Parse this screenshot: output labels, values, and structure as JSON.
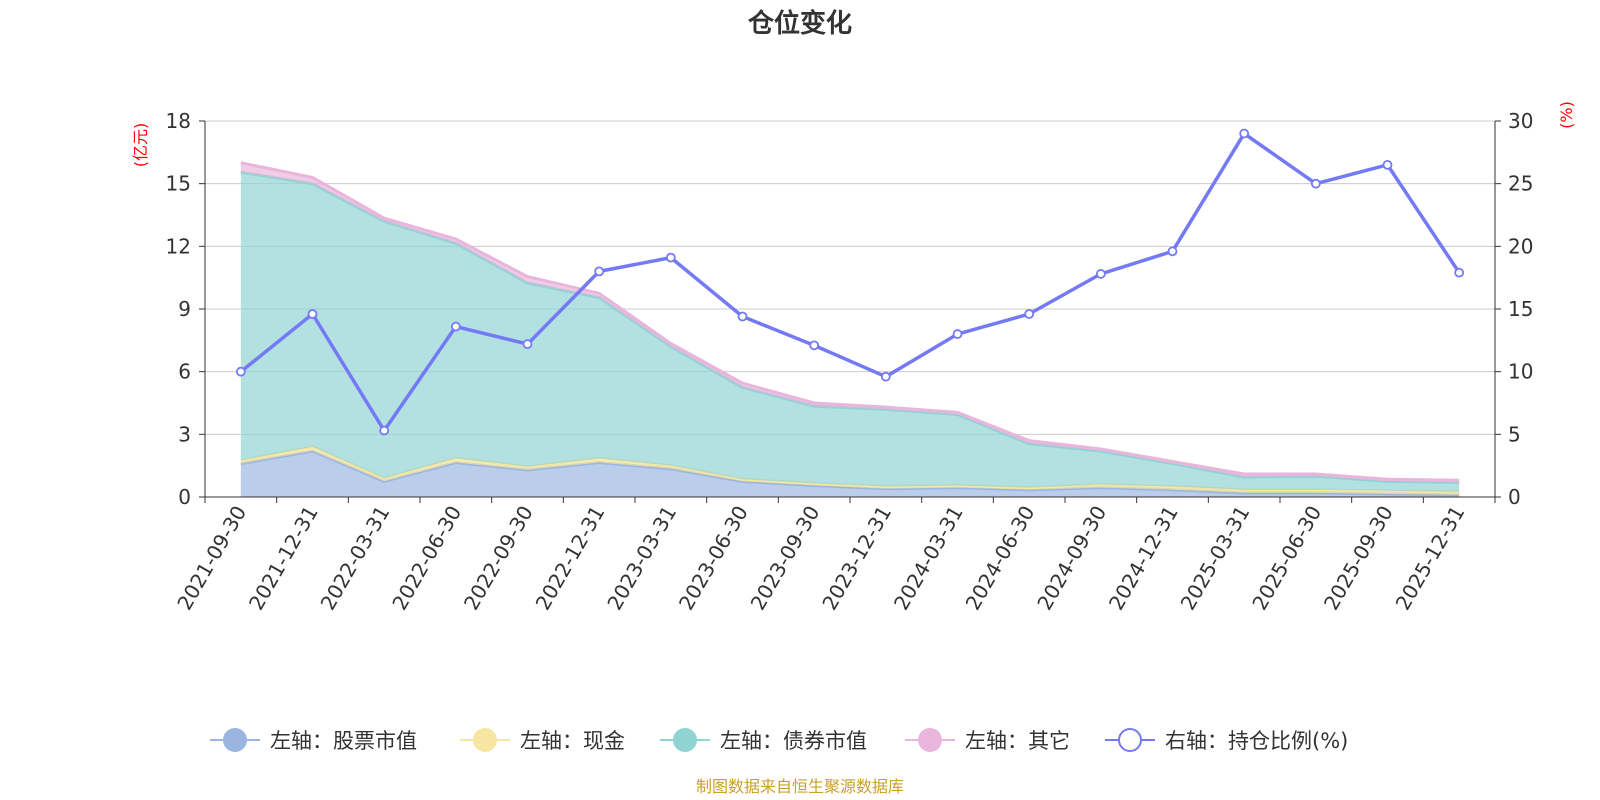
{
  "colors": {
    "stock": "#9ab5e0",
    "cash": "#f7e6a0",
    "bond": "#8fd3d3",
    "other": "#e9b5dc",
    "ratio": "#7479f5",
    "grid": "#cccccc",
    "axis": "#333333",
    "unit": "#ff0000",
    "source": "#c9a227"
  },
  "chart_data": {
    "type": "area",
    "title": "仓位变化",
    "left_unit": "(亿元)",
    "right_unit": "(%)",
    "left_axis": {
      "min": 0,
      "max": 18,
      "ticks": [
        0,
        3,
        6,
        9,
        12,
        15,
        18
      ]
    },
    "right_axis": {
      "min": 0,
      "max": 30,
      "ticks": [
        0,
        5,
        10,
        15,
        20,
        25,
        30
      ]
    },
    "categories": [
      "2021-09-30",
      "2021-12-31",
      "2022-03-31",
      "2022-06-30",
      "2022-09-30",
      "2022-12-31",
      "2023-03-31",
      "2023-06-30",
      "2023-09-30",
      "2023-12-31",
      "2024-03-31",
      "2024-06-30",
      "2024-09-30",
      "2024-12-31",
      "2025-03-31",
      "2025-06-30",
      "2025-09-30",
      "2025-12-31"
    ],
    "stacked_series": [
      {
        "key": "stock",
        "name": "左轴：股票市值",
        "axis": "left",
        "values": [
          1.6,
          2.2,
          0.75,
          1.65,
          1.3,
          1.65,
          1.35,
          0.75,
          0.55,
          0.4,
          0.45,
          0.35,
          0.45,
          0.35,
          0.2,
          0.2,
          0.15,
          0.1
        ]
      },
      {
        "key": "cash",
        "name": "左轴：现金",
        "axis": "left",
        "values": [
          0.15,
          0.2,
          0.15,
          0.2,
          0.15,
          0.2,
          0.15,
          0.1,
          0.1,
          0.1,
          0.1,
          0.1,
          0.15,
          0.15,
          0.15,
          0.15,
          0.15,
          0.15
        ]
      },
      {
        "key": "bond",
        "name": "左轴：债券市值",
        "axis": "left",
        "values": [
          13.8,
          12.6,
          12.3,
          10.3,
          8.8,
          7.7,
          5.7,
          4.4,
          3.7,
          3.7,
          3.4,
          2.1,
          1.6,
          1.1,
          0.6,
          0.65,
          0.45,
          0.45
        ]
      },
      {
        "key": "other",
        "name": "左轴：其它",
        "axis": "left",
        "values": [
          0.45,
          0.3,
          0.15,
          0.2,
          0.3,
          0.2,
          0.15,
          0.2,
          0.15,
          0.1,
          0.1,
          0.15,
          0.1,
          0.1,
          0.15,
          0.1,
          0.1,
          0.1
        ]
      }
    ],
    "line_series": {
      "key": "ratio",
      "name": "右轴：持仓比例(%)",
      "axis": "right",
      "values": [
        10.0,
        14.6,
        5.3,
        13.6,
        12.2,
        18.0,
        19.1,
        14.4,
        12.1,
        9.6,
        13.0,
        14.6,
        17.8,
        19.6,
        29.0,
        25.0,
        26.5,
        17.9
      ]
    }
  },
  "footer": {
    "source": "制图数据来自恒生聚源数据库"
  }
}
